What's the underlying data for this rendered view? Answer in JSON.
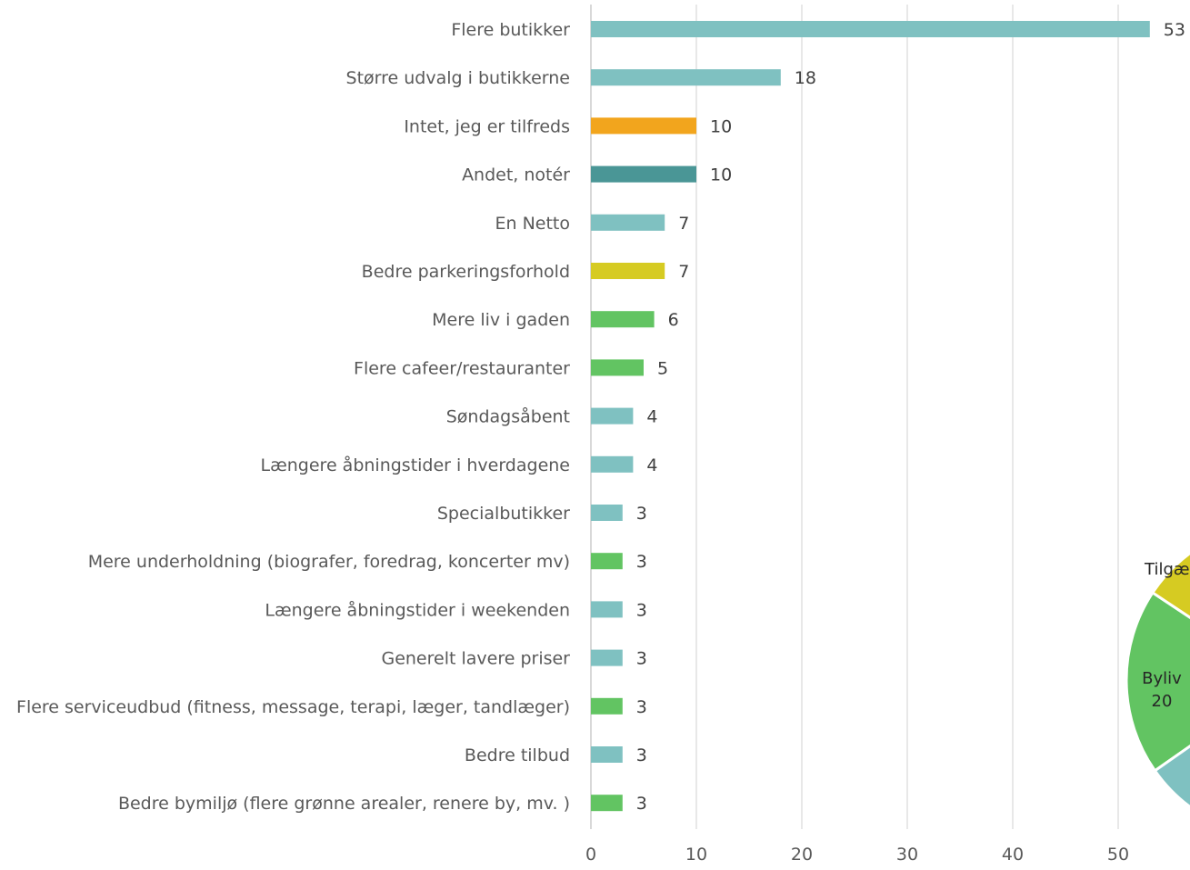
{
  "chart_data": [
    {
      "type": "bar",
      "orientation": "horizontal",
      "title": "",
      "xlabel": "",
      "ylabel": "",
      "xlim": [
        0,
        53
      ],
      "x_ticks": [
        0,
        10,
        20,
        30,
        40,
        50
      ],
      "grid": "vertical",
      "legend": "none",
      "categories": [
        "Flere butikker",
        "Større udvalg i butikkerne",
        "Intet, jeg er tilfreds",
        "Andet, notér",
        "En Netto",
        "Bedre parkeringsforhold",
        "Mere liv i gaden",
        "Flere cafeer/restauranter",
        "Søndagsåbent",
        "Længere åbningstider i hverdagene",
        "Specialbutikker",
        "Mere underholdning (biografer, foredrag, koncerter mv)",
        "Længere åbningstider i weekenden",
        "Generelt lavere priser",
        "Flere serviceudbud (fitness, message, terapi, læger, tandlæger)",
        "Bedre tilbud",
        "Bedre bymiljø (flere grønne arealer, renere by, mv. )"
      ],
      "values": [
        53,
        18,
        10,
        10,
        7,
        7,
        6,
        5,
        4,
        4,
        3,
        3,
        3,
        3,
        3,
        3,
        3
      ],
      "colors": [
        "#7fc1c1",
        "#7fc1c1",
        "#f2a51d",
        "#4a9696",
        "#7fc1c1",
        "#d6cb22",
        "#62c462",
        "#62c462",
        "#7fc1c1",
        "#7fc1c1",
        "#7fc1c1",
        "#62c462",
        "#7fc1c1",
        "#7fc1c1",
        "#62c462",
        "#7fc1c1",
        "#62c462"
      ]
    },
    {
      "type": "pie",
      "partially_visible": true,
      "slices": [
        {
          "label": "Byliv",
          "value": 20,
          "color": "#62c462"
        },
        {
          "label": "Tilgæ",
          "color": "#d6cb22"
        },
        {
          "color": "#4a9696"
        },
        {
          "color": "#7fc1c1"
        }
      ]
    }
  ],
  "colors": {
    "grid": "#d9d9d9",
    "axis": "#bfbfbf",
    "text": "#595959",
    "value_text": "#404040"
  }
}
